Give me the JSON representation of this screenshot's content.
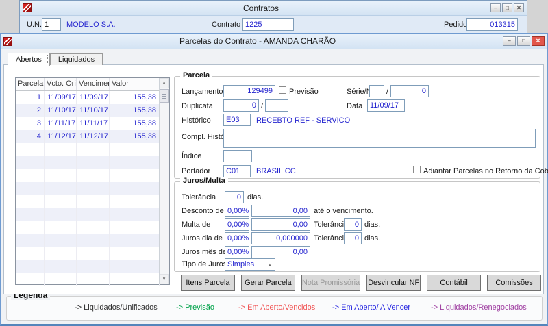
{
  "icons": {
    "minimize": "–",
    "maximize": "□",
    "close": "✕",
    "scroll_up": "∧",
    "scroll_down": "∨",
    "dropdown": "∨",
    "app_logo": "red-ribbon-logo"
  },
  "colors": {
    "accent_text": "#2424cf",
    "close_button": "#e2574c",
    "row_stripe": "#eef0f9"
  },
  "app": {
    "window_title": "Contratos",
    "un_label": "U.N.",
    "un_value": "1",
    "company": "MODELO S.A.",
    "contrato_label": "Contrato",
    "contrato_value": "1225",
    "pedido_label": "Pedido",
    "pedido_value": "013315"
  },
  "dialog": {
    "title": "Parcelas do Contrato - AMANDA CHARÃO",
    "tabs": [
      {
        "label": "Abertos",
        "active": true
      },
      {
        "label": "Liquidados",
        "active": false
      }
    ]
  },
  "table": {
    "columns": [
      "Parcela",
      "Vcto. Orig",
      "Vencimento",
      "Valor"
    ],
    "rows": [
      {
        "parcela": "1",
        "vcto_orig": "11/09/17",
        "vencimento": "11/09/17",
        "valor": "155,38"
      },
      {
        "parcela": "2",
        "vcto_orig": "11/10/17",
        "vencimento": "11/10/17",
        "valor": "155,38"
      },
      {
        "parcela": "3",
        "vcto_orig": "11/11/17",
        "vencimento": "11/11/17",
        "valor": "155,38"
      },
      {
        "parcela": "4",
        "vcto_orig": "11/12/17",
        "vencimento": "11/12/17",
        "valor": "155,38"
      }
    ],
    "empty_rows": 11
  },
  "parcela_section": {
    "title": "Parcela",
    "lancamento_label": "Lançamento",
    "lancamento_value": "129499",
    "previsao_label": "Previsão",
    "previsao_checked": false,
    "serie_nf_label": "Série/NF",
    "serie_nf_value1": "",
    "slash": "/",
    "serie_nf_value2": "0",
    "duplicata_label": "Duplicata",
    "duplicata_value1": "0",
    "duplicata_value2": "",
    "data_label": "Data",
    "data_value": "11/09/17",
    "historico_label": "Histórico",
    "historico_code": "E03",
    "historico_desc": "RECEBTO REF - SERVICO",
    "compl_historico_label": "Compl. Histórico",
    "compl_historico_value": "",
    "indice_label": "Índice",
    "indice_value": "",
    "portador_label": "Portador",
    "portador_code": "C01",
    "portador_desc": "BRASIL CC",
    "adiantar_label": "Adiantar Parcelas no Retorno da Cobrança",
    "adiantar_checked": false
  },
  "juros_section": {
    "title": "Juros/Multa",
    "tolerancia_label": "Tolerância",
    "tolerancia_value": "0",
    "dias_label": "dias.",
    "desconto_label": "Desconto de",
    "desconto_pct": "0,00%",
    "desconto_valor": "0,00",
    "ate_vencimento_label": "até o vencimento.",
    "multa_label": "Multa de",
    "multa_pct": "0,00%",
    "multa_valor": "0,00",
    "multa_tolerancia_label": "Tolerância",
    "multa_tolerancia_value": "0",
    "juros_dia_label": "Juros dia de",
    "juros_dia_pct": "0,00%",
    "juros_dia_valor": "0,000000",
    "juros_dia_tolerancia_label": "Tolerância",
    "juros_dia_tolerancia_value": "0",
    "juros_mes_label": "Juros mês de",
    "juros_mes_pct": "0,00%",
    "juros_mes_valor": "0,00",
    "tipo_juros_label": "Tipo de Juros",
    "tipo_juros_value": "Simples"
  },
  "actions": {
    "buttons": [
      {
        "label": "Itens Parcela",
        "mnemonic": "I",
        "enabled": true
      },
      {
        "label": "Gerar Parcela",
        "mnemonic": "G",
        "enabled": true
      },
      {
        "label": "Nota Promissória",
        "mnemonic": "N",
        "enabled": false
      },
      {
        "label": "Desvincular NF",
        "mnemonic": "D",
        "enabled": true
      },
      {
        "label": "Contábil",
        "mnemonic": "C",
        "enabled": true
      },
      {
        "label": "Comissões",
        "mnemonic": "o",
        "enabled": true
      }
    ]
  },
  "legend": {
    "title": "Legenda",
    "items": [
      {
        "label": "-> Liquidados/Unificados",
        "color": "#303030"
      },
      {
        "label": "-> Previsão",
        "color": "#00a24a"
      },
      {
        "label": "-> Em Aberto/Vencidos",
        "color": "#f05454"
      },
      {
        "label": "-> Em Aberto/ A Vencer",
        "color": "#2525e0"
      },
      {
        "label": "-> Liquidados/Renegociados",
        "color": "#a040a2"
      }
    ]
  }
}
